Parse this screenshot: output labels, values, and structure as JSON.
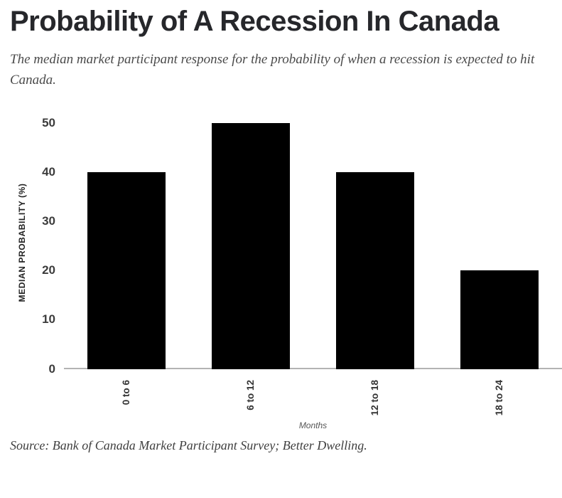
{
  "header": {
    "title": "Probability of A Recession In Canada",
    "subtitle": "The median market participant response for the probability of when a recession is expected to hit Canada."
  },
  "chart_data": {
    "type": "bar",
    "title": "Probability of A Recession In Canada",
    "categories": [
      "0 to 6",
      "6 to 12",
      "12 to 18",
      "18 to 24"
    ],
    "values": [
      40,
      50,
      40,
      20
    ],
    "xlabel": "Months",
    "ylabel": "MEDIAN PROBABILITY (%)",
    "ylim": [
      0,
      50
    ],
    "yticks": [
      0,
      10,
      20,
      30,
      40,
      50
    ],
    "grid": false,
    "legend": false,
    "bar_color": "#000000",
    "axis_line_color": "#b3b3b3"
  },
  "footer": {
    "source": "Source: Bank of Canada Market Participant Survey; Better Dwelling."
  }
}
